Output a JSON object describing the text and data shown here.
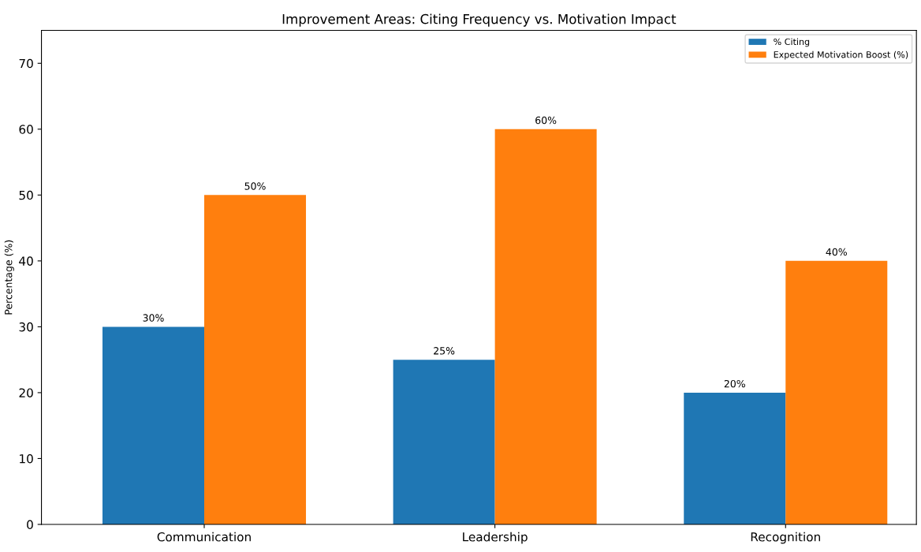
{
  "chart_data": {
    "type": "bar",
    "title": "Improvement Areas: Citing Frequency vs. Motivation Impact",
    "ylabel": "Percentage (%)",
    "categories": [
      "Communication",
      "Leadership",
      "Recognition"
    ],
    "series": [
      {
        "name": "% Citing",
        "color": "#1f77b4",
        "values": [
          30,
          25,
          20
        ],
        "value_labels": [
          "30%",
          "25%",
          "20%"
        ]
      },
      {
        "name": "Expected Motivation Boost (%)",
        "color": "#ff7f0e",
        "values": [
          50,
          60,
          40
        ],
        "value_labels": [
          "50%",
          "60%",
          "40%"
        ]
      }
    ],
    "ylim": [
      0,
      75
    ],
    "yticks": [
      0,
      10,
      20,
      30,
      40,
      50,
      60,
      70
    ],
    "grid": false,
    "legend": "top right"
  }
}
